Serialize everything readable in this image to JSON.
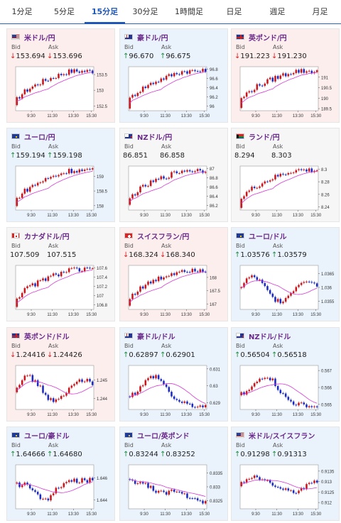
{
  "tabs": [
    "1分足",
    "5分足",
    "15分足",
    "30分足",
    "1時間足",
    "日足",
    "週足",
    "月足"
  ],
  "active_tab": 2,
  "labels": {
    "bid": "Bid",
    "ask": "Ask"
  },
  "colors": {
    "up_candle": "#c8161d",
    "down_candle": "#1c2bbf",
    "ma_line": "#d63ad6",
    "arrow_up": "#1a8a3a",
    "arrow_down": "#d81e1e"
  },
  "cards": [
    {
      "pair": "米ドル/円",
      "flag": "us",
      "trend": "down",
      "bid": "153.694",
      "ask": "153.696",
      "y_ticks": [
        "153.5",
        "153",
        "152.5"
      ],
      "x_ticks": [
        "9:30",
        "11:30",
        "13:30",
        "15:30"
      ],
      "chart_data": {
        "type": "candlestick",
        "shape": "rise",
        "ylim": [
          152.35,
          153.75
        ]
      }
    },
    {
      "pair": "豪ドル/円",
      "flag": "au",
      "trend": "up",
      "bid": "96.670",
      "ask": "96.675",
      "y_ticks": [
        "96.8",
        "96.6",
        "96.4",
        "96.2",
        "96"
      ],
      "x_ticks": [
        "9:30",
        "11:30",
        "13:30",
        "15:30"
      ],
      "chart_data": {
        "type": "candlestick",
        "shape": "rise",
        "ylim": [
          95.9,
          96.85
        ]
      }
    },
    {
      "pair": "英ポンド/円",
      "flag": "gb",
      "trend": "down",
      "bid": "191.223",
      "ask": "191.230",
      "y_ticks": [
        "191",
        "190.5",
        "190",
        "189.5"
      ],
      "x_ticks": [
        "9:30",
        "11:30",
        "13:30",
        "15:30"
      ],
      "chart_data": {
        "type": "candlestick",
        "shape": "rise",
        "ylim": [
          189.4,
          191.5
        ]
      }
    },
    {
      "pair": "ユーロ/円",
      "flag": "eu",
      "trend": "up",
      "bid": "159.194",
      "ask": "159.198",
      "y_ticks": [
        "159",
        "158.5",
        "158"
      ],
      "x_ticks": [
        "9:30",
        "11:30",
        "13:30",
        "15:30"
      ],
      "chart_data": {
        "type": "candlestick",
        "shape": "rise",
        "ylim": [
          157.85,
          159.35
        ]
      }
    },
    {
      "pair": "NZドル/円",
      "flag": "nz",
      "trend": "flat",
      "bid": "86.851",
      "ask": "86.858",
      "y_ticks": [
        "87",
        "86.8",
        "86.6",
        "86.4",
        "86.2"
      ],
      "x_ticks": [
        "9:30",
        "11:30",
        "13:30",
        "15:30"
      ],
      "chart_data": {
        "type": "candlestick",
        "shape": "rise",
        "ylim": [
          86.1,
          87.05
        ]
      }
    },
    {
      "pair": "ランド/円",
      "flag": "za",
      "trend": "flat",
      "bid": "8.294",
      "ask": "8.303",
      "y_ticks": [
        "8.3",
        "8.28",
        "8.26",
        "8.24"
      ],
      "x_ticks": [
        "9:30",
        "11:30",
        "13:30",
        "15:30"
      ],
      "chart_data": {
        "type": "candlestick",
        "shape": "rise",
        "ylim": [
          8.235,
          8.305
        ]
      }
    },
    {
      "pair": "カナダドル/円",
      "flag": "ca",
      "trend": "flat",
      "bid": "107.509",
      "ask": "107.515",
      "y_ticks": [
        "107.6",
        "107.4",
        "107.2",
        "107",
        "106.8"
      ],
      "x_ticks": [
        "9:30",
        "11:30",
        "13:30",
        "15:30"
      ],
      "chart_data": {
        "type": "candlestick",
        "shape": "rise",
        "ylim": [
          106.7,
          107.65
        ]
      }
    },
    {
      "pair": "スイスフラン/円",
      "flag": "ch",
      "trend": "down",
      "bid": "168.324",
      "ask": "168.340",
      "y_ticks": [
        "168",
        "167.5",
        "167"
      ],
      "x_ticks": [
        "9:30",
        "11:30",
        "13:30",
        "15:30"
      ],
      "chart_data": {
        "type": "candlestick",
        "shape": "rise",
        "ylim": [
          166.8,
          168.45
        ]
      }
    },
    {
      "pair": "ユーロ/ドル",
      "flag": "eu",
      "trend": "up",
      "bid": "1.03576",
      "ask": "1.03579",
      "y_ticks": [
        "1.0365",
        "1.036",
        "1.0355"
      ],
      "x_ticks": [
        "9:30",
        "11:30",
        "13:30",
        "15:30"
      ],
      "chart_data": {
        "type": "candlestick",
        "shape": "choppy",
        "ylim": [
          1.0352,
          1.0368
        ]
      }
    },
    {
      "pair": "英ポンド/ドル",
      "flag": "gb",
      "trend": "down",
      "bid": "1.24416",
      "ask": "1.24426",
      "y_ticks": [
        "1.245",
        "1.244"
      ],
      "x_ticks": [
        "9:30",
        "11:30",
        "13:30",
        "15:30"
      ],
      "chart_data": {
        "type": "candlestick",
        "shape": "choppy",
        "ylim": [
          1.2434,
          1.2458
        ]
      }
    },
    {
      "pair": "豪ドル/ドル",
      "flag": "au",
      "trend": "up",
      "bid": "0.62897",
      "ask": "0.62901",
      "y_ticks": [
        "0.631",
        "0.63",
        "0.629"
      ],
      "x_ticks": [
        "9:30",
        "11:30",
        "13:30",
        "15:30"
      ],
      "chart_data": {
        "type": "candlestick",
        "shape": "hump",
        "ylim": [
          0.6286,
          0.6312
        ]
      }
    },
    {
      "pair": "NZドル/ドル",
      "flag": "nz",
      "trend": "up",
      "bid": "0.56504",
      "ask": "0.56518",
      "y_ticks": [
        "0.567",
        "0.566",
        "0.565"
      ],
      "x_ticks": [
        "9:30",
        "11:30",
        "13:30",
        "15:30"
      ],
      "chart_data": {
        "type": "candlestick",
        "shape": "hump",
        "ylim": [
          0.5647,
          0.5673
        ]
      }
    },
    {
      "pair": "ユーロ/豪ドル",
      "flag": "eu",
      "trend": "up",
      "bid": "1.64666",
      "ask": "1.64680",
      "y_ticks": [
        "1.646",
        "1.644"
      ],
      "x_ticks": [
        "9:30",
        "11:30",
        "13:30",
        "15:30"
      ],
      "chart_data": {
        "type": "candlestick",
        "shape": "dip",
        "ylim": [
          1.6432,
          1.6472
        ]
      }
    },
    {
      "pair": "ユーロ/英ポンド",
      "flag": "eu",
      "trend": "up",
      "bid": "0.83244",
      "ask": "0.83252",
      "y_ticks": [
        "0.8335",
        "0.833",
        "0.8325"
      ],
      "x_ticks": [
        "9:30",
        "11:30",
        "13:30",
        "15:30"
      ],
      "chart_data": {
        "type": "candlestick",
        "shape": "fall",
        "ylim": [
          0.8322,
          0.8338
        ]
      }
    },
    {
      "pair": "米ドル/スイスフラン",
      "flag": "us",
      "trend": "up",
      "bid": "0.91298",
      "ask": "0.91313",
      "y_ticks": [
        "0.9135",
        "0.913",
        "0.9125",
        "0.912"
      ],
      "x_ticks": [
        "9:30",
        "11:30",
        "13:30",
        "15:30"
      ],
      "chart_data": {
        "type": "candlestick",
        "shape": "flat",
        "ylim": [
          0.9117,
          0.9138
        ]
      }
    }
  ]
}
